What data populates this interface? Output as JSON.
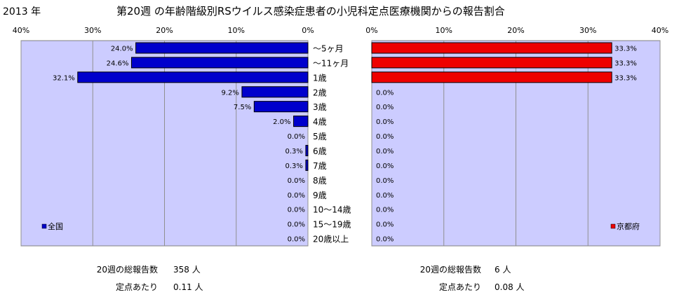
{
  "header": {
    "year": "2013 年",
    "title": "第20週 の年齢階級別RSウイルス感染症患者の小児科定点医療機関からの報告割合"
  },
  "chart_data": [
    {
      "type": "bar",
      "orientation": "horizontal",
      "direction": "right-to-left",
      "categories": [
        "〜5ヶ月",
        "〜11ヶ月",
        "1歳",
        "2歳",
        "3歳",
        "4歳",
        "5歳",
        "6歳",
        "7歳",
        "8歳",
        "9歳",
        "10〜14歳",
        "15〜19歳",
        "20歳以上"
      ],
      "series": [
        {
          "name": "全国",
          "color": "#0000cc",
          "values": [
            24.0,
            24.6,
            32.1,
            9.2,
            7.5,
            2.0,
            0.0,
            0.3,
            0.3,
            0.0,
            0.0,
            0.0,
            0.0,
            0.0
          ],
          "data_labels": [
            "24.0%",
            "24.6%",
            "32.1%",
            "9.2%",
            "7.5%",
            "2.0%",
            "0.0%",
            "0.3%",
            "0.3%",
            "0.0%",
            "0.0%",
            "0.0%",
            "0.0%",
            "0.0%"
          ]
        }
      ],
      "xlim": [
        0,
        40
      ],
      "xticks": [
        "0%",
        "10%",
        "20%",
        "30%",
        "40%"
      ],
      "grid": true,
      "legend_position": "bottom-left"
    },
    {
      "type": "bar",
      "orientation": "horizontal",
      "direction": "left-to-right",
      "categories": [
        "〜5ヶ月",
        "〜11ヶ月",
        "1歳",
        "2歳",
        "3歳",
        "4歳",
        "5歳",
        "6歳",
        "7歳",
        "8歳",
        "9歳",
        "10〜14歳",
        "15〜19歳",
        "20歳以上"
      ],
      "series": [
        {
          "name": "京都府",
          "color": "#ee0000",
          "values": [
            33.3,
            33.3,
            33.3,
            0.0,
            0.0,
            0.0,
            0.0,
            0.0,
            0.0,
            0.0,
            0.0,
            0.0,
            0.0,
            0.0
          ],
          "data_labels": [
            "33.3%",
            "33.3%",
            "33.3%",
            "0.0%",
            "0.0%",
            "0.0%",
            "0.0%",
            "0.0%",
            "0.0%",
            "0.0%",
            "0.0%",
            "0.0%",
            "0.0%",
            "0.0%"
          ]
        }
      ],
      "xlim": [
        0,
        40
      ],
      "xticks": [
        "0%",
        "10%",
        "20%",
        "30%",
        "40%"
      ],
      "grid": true,
      "legend_position": "bottom-right"
    }
  ],
  "footer": {
    "left": {
      "total_label": "20週の総報告数",
      "total_value": "358 人",
      "per_label": "定点あたり",
      "per_value": "0.11 人"
    },
    "right": {
      "total_label": "20週の総報告数",
      "total_value": "6 人",
      "per_label": "定点あたり",
      "per_value": "0.08 人"
    }
  }
}
